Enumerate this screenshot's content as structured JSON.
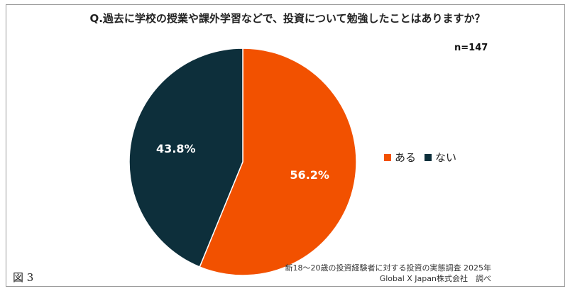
{
  "chart_data": {
    "type": "pie",
    "title": "Q.過去に学校の授業や課外学習などで、投資について勉強したことはありますか？",
    "annotation": "n=147",
    "slices": [
      {
        "label": "ある",
        "value": 56.2,
        "value_label": "56.2%",
        "color": "#f25100"
      },
      {
        "label": "ない",
        "value": 43.8,
        "value_label": "43.8%",
        "color": "#0d2f3b"
      }
    ],
    "legend_position": "right"
  },
  "source": {
    "line1": "新18～20歳の投資経験者に対する投資の実態調査 2025年",
    "line2": "Global X Japan株式会社　調べ"
  },
  "figure_label": "図 3"
}
